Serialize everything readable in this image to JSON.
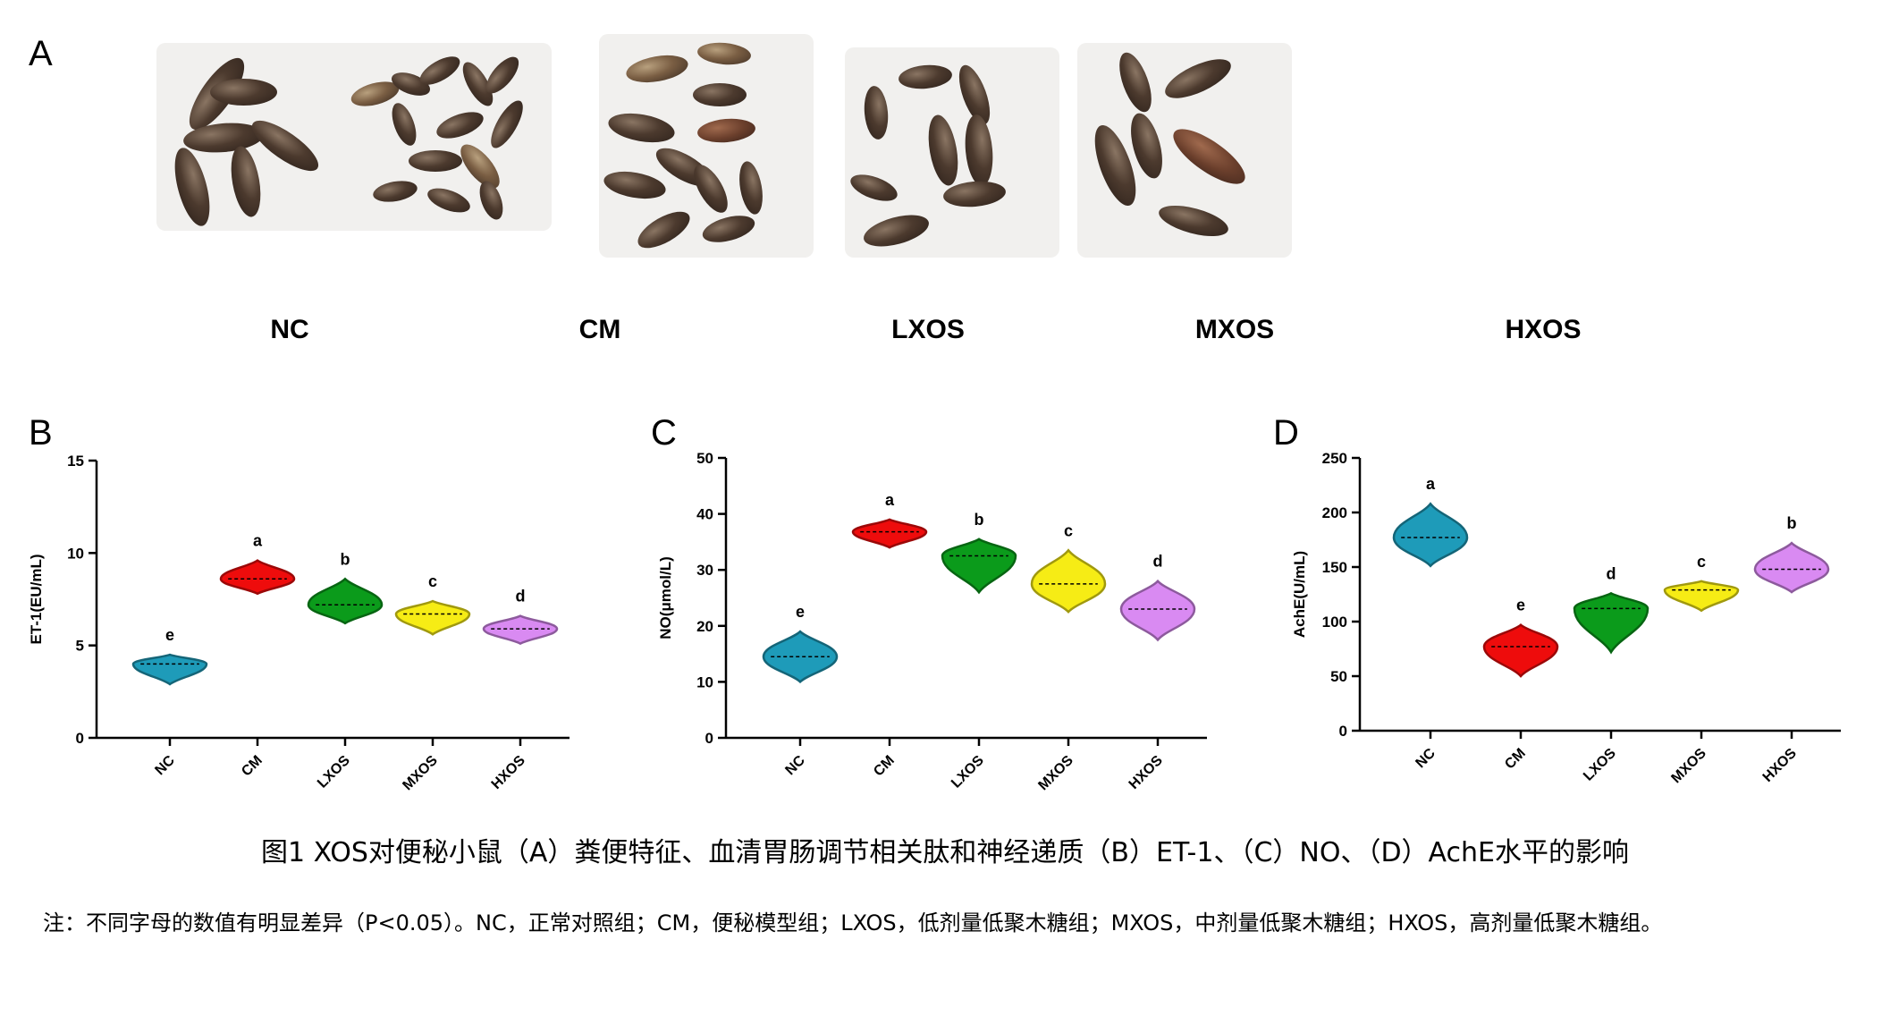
{
  "panels": {
    "A": "A",
    "B": "B",
    "C": "C",
    "D": "D"
  },
  "photo_groups": [
    "NC",
    "CM",
    "LXOS",
    "MXOS",
    "HXOS"
  ],
  "caption": "图1 XOS对便秘小鼠（A）粪便特征、血清胃肠调节相关肽和神经递质（B）ET-1、（C）NO、（D）AchE水平的影响",
  "note": "注：不同字母的数值有明显差异（P<0.05）。NC，正常对照组；CM，便秘模型组；LXOS，低剂量低聚木糖组；MXOS，中剂量低聚木糖组；HXOS，高剂量低聚木糖组。",
  "colors": {
    "NC": "#1e9bb9",
    "CM": "#ee0c0c",
    "LXOS": "#0b9b1b",
    "MXOS": "#f6ec15",
    "HXOS": "#d98af2"
  },
  "chart_data": [
    {
      "type": "violin",
      "ylabel": "ET-1(EU/mL)",
      "ylim": [
        0,
        15
      ],
      "yticks": [
        0,
        5,
        10,
        15
      ],
      "categories": [
        "NC",
        "CM",
        "LXOS",
        "MXOS",
        "HXOS"
      ],
      "medians": [
        4.0,
        8.6,
        7.2,
        6.7,
        5.9
      ],
      "ranges": [
        [
          2.9,
          4.5
        ],
        [
          7.8,
          9.6
        ],
        [
          6.2,
          8.6
        ],
        [
          5.6,
          7.4
        ],
        [
          5.1,
          6.6
        ]
      ],
      "letters": [
        "e",
        "a",
        "b",
        "c",
        "d"
      ]
    },
    {
      "type": "violin",
      "ylabel": "NO(μmol/L)",
      "ylim": [
        0,
        50
      ],
      "yticks": [
        0,
        10,
        20,
        30,
        40,
        50
      ],
      "categories": [
        "NC",
        "CM",
        "LXOS",
        "MXOS",
        "HXOS"
      ],
      "medians": [
        14.5,
        36.8,
        32.5,
        27.5,
        23.0
      ],
      "ranges": [
        [
          10.0,
          19.0
        ],
        [
          34.0,
          39.0
        ],
        [
          26.0,
          35.5
        ],
        [
          22.5,
          33.5
        ],
        [
          17.5,
          28.0
        ]
      ],
      "letters": [
        "e",
        "a",
        "b",
        "c",
        "d"
      ]
    },
    {
      "type": "violin",
      "ylabel": "AchE(U/mL)",
      "ylim": [
        0,
        250
      ],
      "yticks": [
        0,
        50,
        100,
        150,
        200,
        250
      ],
      "categories": [
        "NC",
        "CM",
        "LXOS",
        "MXOS",
        "HXOS"
      ],
      "medians": [
        177,
        77,
        112,
        129,
        148
      ],
      "ranges": [
        [
          151,
          208
        ],
        [
          50,
          97
        ],
        [
          72,
          126
        ],
        [
          110,
          137
        ],
        [
          127,
          172
        ]
      ],
      "letters": [
        "a",
        "e",
        "d",
        "c",
        "b"
      ]
    }
  ]
}
